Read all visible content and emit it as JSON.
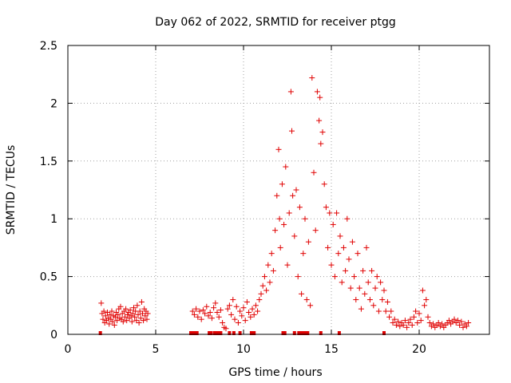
{
  "chart_data": {
    "type": "scatter",
    "title": "Day 062 of 2022, SRMTID for receiver ptgg",
    "xlabel": "GPS time / hours",
    "ylabel": "SRMTID / TECUs",
    "xlim": [
      0,
      24
    ],
    "ylim": [
      0,
      2.5
    ],
    "xticks": [
      0,
      5,
      10,
      15,
      20
    ],
    "xtick_labels": [
      "0",
      "5",
      "10",
      "15",
      "20"
    ],
    "yticks": [
      0,
      0.5,
      1,
      1.5,
      2,
      2.5
    ],
    "ytick_labels": [
      "0",
      "0.5",
      "1",
      "1.5",
      "2",
      "2.5"
    ],
    "grid": true,
    "series": [
      {
        "name": "SRMTID",
        "marker": "plus",
        "color": "#e00000",
        "points": [
          [
            1.9,
            0.27
          ],
          [
            1.95,
            0.18
          ],
          [
            2.0,
            0.13
          ],
          [
            2.05,
            0.2
          ],
          [
            2.1,
            0.1
          ],
          [
            2.15,
            0.16
          ],
          [
            2.2,
            0.12
          ],
          [
            2.25,
            0.19
          ],
          [
            2.3,
            0.14
          ],
          [
            2.35,
            0.09
          ],
          [
            2.4,
            0.17
          ],
          [
            2.45,
            0.13
          ],
          [
            2.5,
            0.2
          ],
          [
            2.55,
            0.11
          ],
          [
            2.6,
            0.16
          ],
          [
            2.65,
            0.08
          ],
          [
            2.7,
            0.15
          ],
          [
            2.75,
            0.19
          ],
          [
            2.8,
            0.12
          ],
          [
            2.85,
            0.17
          ],
          [
            2.9,
            0.22
          ],
          [
            2.95,
            0.14
          ],
          [
            3.0,
            0.24
          ],
          [
            3.05,
            0.13
          ],
          [
            3.1,
            0.18
          ],
          [
            3.15,
            0.11
          ],
          [
            3.2,
            0.2
          ],
          [
            3.25,
            0.15
          ],
          [
            3.3,
            0.22
          ],
          [
            3.35,
            0.12
          ],
          [
            3.4,
            0.17
          ],
          [
            3.45,
            0.19
          ],
          [
            3.5,
            0.14
          ],
          [
            3.55,
            0.21
          ],
          [
            3.6,
            0.16
          ],
          [
            3.65,
            0.11
          ],
          [
            3.7,
            0.18
          ],
          [
            3.75,
            0.23
          ],
          [
            3.8,
            0.15
          ],
          [
            3.85,
            0.2
          ],
          [
            3.9,
            0.12
          ],
          [
            3.95,
            0.25
          ],
          [
            4.0,
            0.17
          ],
          [
            4.05,
            0.1
          ],
          [
            4.1,
            0.2
          ],
          [
            4.15,
            0.14
          ],
          [
            4.2,
            0.28
          ],
          [
            4.25,
            0.18
          ],
          [
            4.3,
            0.12
          ],
          [
            4.35,
            0.22
          ],
          [
            4.4,
            0.16
          ],
          [
            4.45,
            0.2
          ],
          [
            4.5,
            0.13
          ],
          [
            4.55,
            0.18
          ],
          [
            7.1,
            0.2
          ],
          [
            7.2,
            0.17
          ],
          [
            7.3,
            0.22
          ],
          [
            7.4,
            0.15
          ],
          [
            7.5,
            0.2
          ],
          [
            7.6,
            0.13
          ],
          [
            7.7,
            0.21
          ],
          [
            7.8,
            0.18
          ],
          [
            7.9,
            0.24
          ],
          [
            8.0,
            0.16
          ],
          [
            8.1,
            0.19
          ],
          [
            8.2,
            0.14
          ],
          [
            8.3,
            0.23
          ],
          [
            8.4,
            0.27
          ],
          [
            8.5,
            0.19
          ],
          [
            8.6,
            0.15
          ],
          [
            8.7,
            0.21
          ],
          [
            8.8,
            0.1
          ],
          [
            8.9,
            0.06
          ],
          [
            9.0,
            0.05
          ],
          [
            9.1,
            0.22
          ],
          [
            9.2,
            0.25
          ],
          [
            9.3,
            0.17
          ],
          [
            9.4,
            0.3
          ],
          [
            9.5,
            0.13
          ],
          [
            9.6,
            0.24
          ],
          [
            9.7,
            0.1
          ],
          [
            9.8,
            0.2
          ],
          [
            9.9,
            0.16
          ],
          [
            10.0,
            0.23
          ],
          [
            10.1,
            0.12
          ],
          [
            10.2,
            0.28
          ],
          [
            10.3,
            0.19
          ],
          [
            10.4,
            0.15
          ],
          [
            10.5,
            0.22
          ],
          [
            10.6,
            0.17
          ],
          [
            10.7,
            0.25
          ],
          [
            10.8,
            0.2
          ],
          [
            10.9,
            0.3
          ],
          [
            11.0,
            0.35
          ],
          [
            11.1,
            0.42
          ],
          [
            11.2,
            0.5
          ],
          [
            11.3,
            0.38
          ],
          [
            11.4,
            0.6
          ],
          [
            11.5,
            0.45
          ],
          [
            11.6,
            0.7
          ],
          [
            11.7,
            0.55
          ],
          [
            11.8,
            0.9
          ],
          [
            11.9,
            1.2
          ],
          [
            12.0,
            1.6
          ],
          [
            12.05,
            1.0
          ],
          [
            12.1,
            0.75
          ],
          [
            12.2,
            1.3
          ],
          [
            12.3,
            0.95
          ],
          [
            12.4,
            1.45
          ],
          [
            12.5,
            0.6
          ],
          [
            12.6,
            1.05
          ],
          [
            12.7,
            2.1
          ],
          [
            12.75,
            1.76
          ],
          [
            12.8,
            1.2
          ],
          [
            12.9,
            0.85
          ],
          [
            13.0,
            1.25
          ],
          [
            13.1,
            0.5
          ],
          [
            13.2,
            1.1
          ],
          [
            13.3,
            0.35
          ],
          [
            13.4,
            0.7
          ],
          [
            13.5,
            1.0
          ],
          [
            13.6,
            0.3
          ],
          [
            13.7,
            0.8
          ],
          [
            13.8,
            0.25
          ],
          [
            13.9,
            2.22
          ],
          [
            14.0,
            1.4
          ],
          [
            14.1,
            0.9
          ],
          [
            14.2,
            2.1
          ],
          [
            14.3,
            1.85
          ],
          [
            14.35,
            2.05
          ],
          [
            14.4,
            1.65
          ],
          [
            14.5,
            1.75
          ],
          [
            14.6,
            1.3
          ],
          [
            14.7,
            1.1
          ],
          [
            14.8,
            0.75
          ],
          [
            14.9,
            1.05
          ],
          [
            15.0,
            0.6
          ],
          [
            15.1,
            0.95
          ],
          [
            15.2,
            0.5
          ],
          [
            15.3,
            1.05
          ],
          [
            15.4,
            0.7
          ],
          [
            15.5,
            0.85
          ],
          [
            15.6,
            0.45
          ],
          [
            15.7,
            0.75
          ],
          [
            15.8,
            0.55
          ],
          [
            15.9,
            1.0
          ],
          [
            16.0,
            0.65
          ],
          [
            16.1,
            0.4
          ],
          [
            16.2,
            0.8
          ],
          [
            16.3,
            0.5
          ],
          [
            16.4,
            0.3
          ],
          [
            16.5,
            0.7
          ],
          [
            16.6,
            0.4
          ],
          [
            16.7,
            0.22
          ],
          [
            16.8,
            0.55
          ],
          [
            16.9,
            0.35
          ],
          [
            17.0,
            0.75
          ],
          [
            17.1,
            0.45
          ],
          [
            17.2,
            0.3
          ],
          [
            17.3,
            0.55
          ],
          [
            17.4,
            0.25
          ],
          [
            17.5,
            0.4
          ],
          [
            17.6,
            0.5
          ],
          [
            17.7,
            0.2
          ],
          [
            17.8,
            0.45
          ],
          [
            17.9,
            0.3
          ],
          [
            18.0,
            0.38
          ],
          [
            18.1,
            0.2
          ],
          [
            18.2,
            0.28
          ],
          [
            18.3,
            0.15
          ],
          [
            18.4,
            0.2
          ],
          [
            18.5,
            0.1
          ],
          [
            18.6,
            0.13
          ],
          [
            18.7,
            0.08
          ],
          [
            18.8,
            0.11
          ],
          [
            18.9,
            0.07
          ],
          [
            19.0,
            0.1
          ],
          [
            19.1,
            0.08
          ],
          [
            19.2,
            0.12
          ],
          [
            19.3,
            0.06
          ],
          [
            19.4,
            0.1
          ],
          [
            19.5,
            0.13
          ],
          [
            19.6,
            0.08
          ],
          [
            19.7,
            0.15
          ],
          [
            19.8,
            0.2
          ],
          [
            19.9,
            0.1
          ],
          [
            20.0,
            0.18
          ],
          [
            20.1,
            0.12
          ],
          [
            20.2,
            0.38
          ],
          [
            20.3,
            0.25
          ],
          [
            20.4,
            0.3
          ],
          [
            20.5,
            0.15
          ],
          [
            20.6,
            0.1
          ],
          [
            20.7,
            0.07
          ],
          [
            20.8,
            0.09
          ],
          [
            20.9,
            0.06
          ],
          [
            21.0,
            0.08
          ],
          [
            21.1,
            0.1
          ],
          [
            21.2,
            0.07
          ],
          [
            21.3,
            0.09
          ],
          [
            21.4,
            0.06
          ],
          [
            21.5,
            0.08
          ],
          [
            21.6,
            0.1
          ],
          [
            21.7,
            0.12
          ],
          [
            21.8,
            0.09
          ],
          [
            21.9,
            0.11
          ],
          [
            22.0,
            0.13
          ],
          [
            22.1,
            0.1
          ],
          [
            22.2,
            0.12
          ],
          [
            22.3,
            0.08
          ],
          [
            22.4,
            0.11
          ],
          [
            22.5,
            0.06
          ],
          [
            22.6,
            0.09
          ],
          [
            22.7,
            0.07
          ],
          [
            22.8,
            0.1
          ]
        ]
      },
      {
        "name": "zero",
        "marker": "square",
        "color": "#e00000",
        "points": [
          [
            1.85,
            0
          ],
          [
            7.0,
            0
          ],
          [
            7.1,
            0
          ],
          [
            7.2,
            0
          ],
          [
            7.35,
            0
          ],
          [
            8.05,
            0
          ],
          [
            8.15,
            0
          ],
          [
            8.35,
            0
          ],
          [
            8.5,
            0
          ],
          [
            8.6,
            0
          ],
          [
            8.7,
            0
          ],
          [
            9.2,
            0
          ],
          [
            9.45,
            0
          ],
          [
            9.8,
            0
          ],
          [
            10.45,
            0
          ],
          [
            10.6,
            0
          ],
          [
            12.25,
            0
          ],
          [
            12.35,
            0
          ],
          [
            12.9,
            0
          ],
          [
            13.15,
            0
          ],
          [
            13.3,
            0
          ],
          [
            13.45,
            0
          ],
          [
            13.55,
            0
          ],
          [
            13.65,
            0
          ],
          [
            14.4,
            0
          ],
          [
            15.45,
            0
          ],
          [
            18.0,
            0
          ]
        ]
      }
    ]
  }
}
